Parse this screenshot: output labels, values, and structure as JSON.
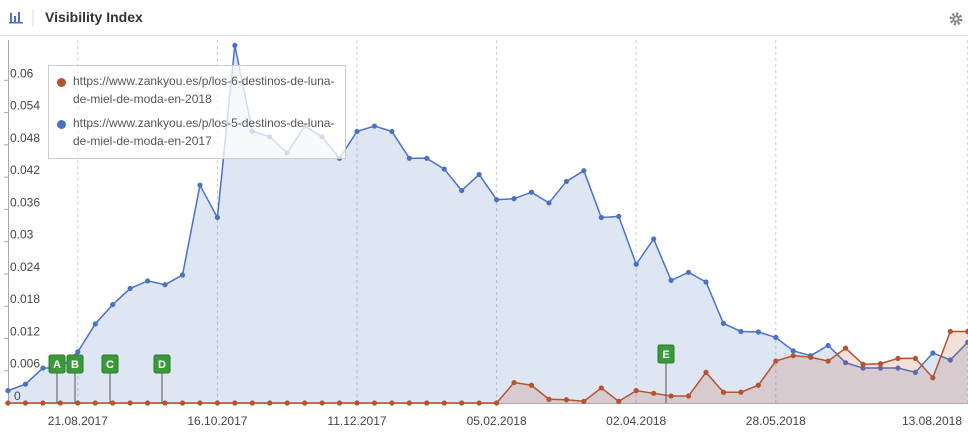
{
  "header": {
    "title": "Visibility Index"
  },
  "chart_data": {
    "type": "line",
    "categories": [
      null,
      null,
      null,
      null,
      "21.08.2017",
      null,
      null,
      null,
      null,
      null,
      null,
      null,
      "16.10.2017",
      null,
      null,
      null,
      null,
      null,
      null,
      null,
      "11.12.2017",
      null,
      null,
      null,
      null,
      null,
      null,
      null,
      "05.02.2018",
      null,
      null,
      null,
      null,
      null,
      null,
      null,
      "02.04.2018",
      null,
      null,
      null,
      null,
      null,
      null,
      null,
      "28.05.2018",
      null,
      null,
      null,
      null,
      null,
      null,
      null,
      null,
      null,
      null,
      "13.08.2018"
    ],
    "series": [
      {
        "name": "https://www.zankyou.es/p/los-6-destinos-de-luna-de-miel-de-moda-en-2018",
        "color": "#b5532d",
        "values": [
          0,
          0,
          0,
          0,
          0,
          0,
          0,
          0,
          0,
          0,
          0,
          0,
          0,
          0,
          0,
          0,
          0,
          0,
          0,
          0,
          0,
          0,
          0,
          0,
          0,
          0,
          0,
          0,
          0,
          0.0038,
          0.0033,
          0.0007,
          0.0006,
          0.0003,
          0.0028,
          0.0003,
          0.0023,
          0.0018,
          0.0013,
          0.0013,
          0.0057,
          0.002,
          0.002,
          0.0033,
          0.0078,
          0.0088,
          0.0085,
          0.0078,
          0.0102,
          0.0072,
          0.0073,
          0.0083,
          0.0083,
          0.0047,
          0.0133,
          0.0133
        ]
      },
      {
        "name": "https://www.zankyou.es/p/los-5-destinos-de-luna-de-miel-de-moda-en-2017",
        "color": "#4a72c4",
        "values": [
          0.0023,
          0.0035,
          0.0065,
          0.0065,
          0.0095,
          0.0147,
          0.0183,
          0.0213,
          0.0227,
          0.022,
          0.0238,
          0.0405,
          0.0345,
          0.0665,
          0.0505,
          0.0495,
          0.0465,
          0.0515,
          0.0495,
          0.0455,
          0.0505,
          0.0515,
          0.0505,
          0.0455,
          0.0455,
          0.0435,
          0.0395,
          0.0425,
          0.0378,
          0.038,
          0.0392,
          0.0372,
          0.0412,
          0.0432,
          0.0345,
          0.0347,
          0.0258,
          0.0305,
          0.0228,
          0.0243,
          0.0225,
          0.0148,
          0.0133,
          0.0132,
          0.0122,
          0.0097,
          0.0088,
          0.0107,
          0.0075,
          0.0065,
          0.0065,
          0.0065,
          0.0057,
          0.0093,
          0.008,
          0.0113
        ]
      }
    ],
    "ylim": [
      0,
      0.0675
    ],
    "yticks": [
      0,
      0.006,
      0.012,
      0.018,
      0.024,
      0.03,
      0.036,
      0.042,
      0.048,
      0.054,
      0.06
    ],
    "events": [
      "A",
      "B",
      "C",
      "D",
      "E"
    ]
  }
}
